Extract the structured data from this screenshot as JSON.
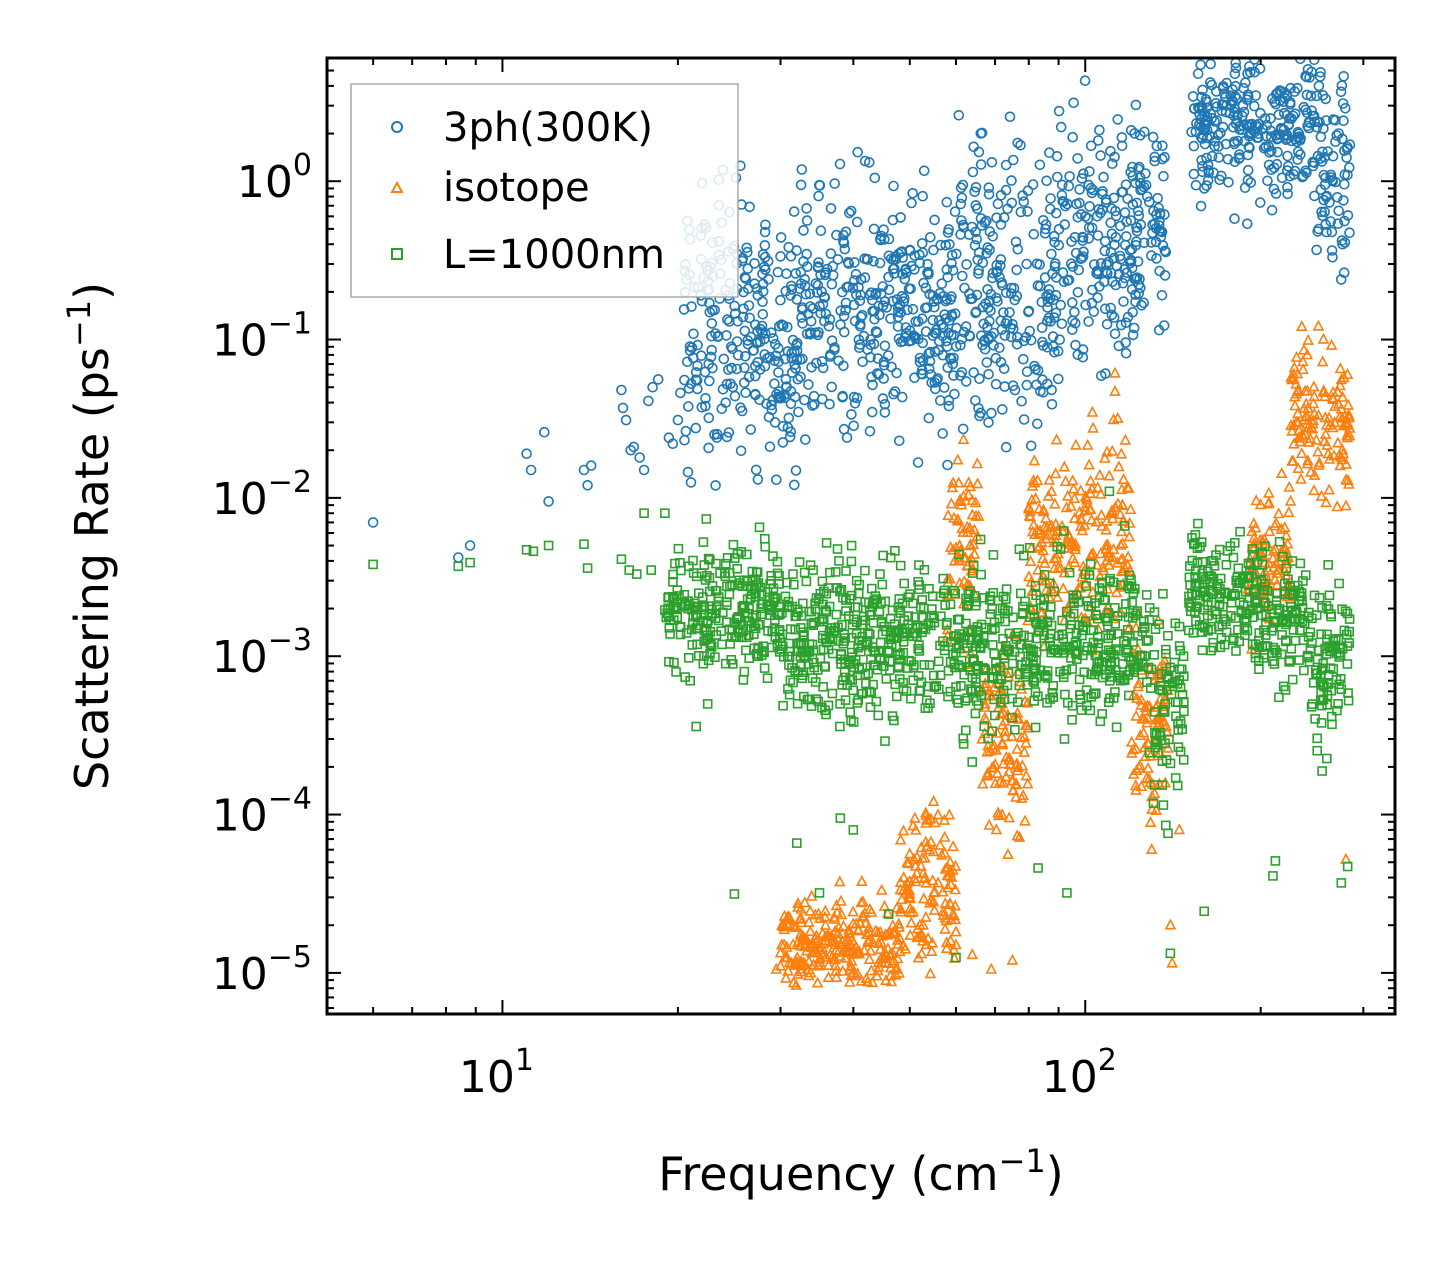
{
  "chart_data": {
    "type": "scatter",
    "title": "",
    "xlabel": "Frequency (cm",
    "xlabel_sup": "−1",
    "xlabel_end": ")",
    "ylabel": "Scattering Rate (ps",
    "ylabel_sup": "−1",
    "ylabel_end": ")",
    "xscale": "log",
    "yscale": "log",
    "xlim": [
      5,
      340
    ],
    "ylim": [
      5.5e-06,
      6
    ],
    "legend_position": "top-left",
    "x_ticks": [
      {
        "value": 10,
        "base": "10",
        "exp": "1"
      },
      {
        "value": 100,
        "base": "10",
        "exp": "2"
      }
    ],
    "y_ticks": [
      {
        "value": 1,
        "base": "10",
        "exp": "0"
      },
      {
        "value": 0.1,
        "base": "10",
        "exp": "−1"
      },
      {
        "value": 0.01,
        "base": "10",
        "exp": "−2"
      },
      {
        "value": 0.001,
        "base": "10",
        "exp": "−3"
      },
      {
        "value": 0.0001,
        "base": "10",
        "exp": "−4"
      },
      {
        "value": 1e-05,
        "base": "10",
        "exp": "−5"
      }
    ],
    "series": [
      {
        "name": "3ph(300K)",
        "marker": "circle",
        "color": "#1f77b4",
        "points": [
          [
            6.0,
            0.007
          ],
          [
            8.4,
            0.0042
          ],
          [
            8.8,
            0.005
          ],
          [
            11.0,
            0.019
          ],
          [
            11.2,
            0.015
          ],
          [
            11.8,
            0.026
          ],
          [
            12.0,
            0.0095
          ],
          [
            13.8,
            0.015
          ],
          [
            14.0,
            0.012
          ],
          [
            14.2,
            0.016
          ],
          [
            16.0,
            0.048
          ],
          [
            16.1,
            0.037
          ],
          [
            16.3,
            0.031
          ],
          [
            16.6,
            0.02
          ],
          [
            16.8,
            0.021
          ],
          [
            17.2,
            0.018
          ],
          [
            17.5,
            0.015
          ],
          [
            17.8,
            0.041
          ],
          [
            18.1,
            0.05
          ],
          [
            18.5,
            0.056
          ],
          [
            19.3,
            0.024
          ],
          [
            19.6,
            0.022
          ],
          [
            20.0,
            0.031
          ],
          [
            20.2,
            0.046
          ],
          [
            20.5,
            0.155
          ],
          [
            21.0,
            0.085
          ],
          [
            21.5,
            0.062
          ],
          [
            22.0,
            0.175
          ],
          [
            22.3,
            0.038
          ],
          [
            22.6,
            0.032
          ],
          [
            24.5,
            0.13
          ],
          [
            26.5,
            0.058
          ],
          [
            29.0,
            0.036
          ],
          [
            30.5,
            0.045
          ],
          [
            31.0,
            0.032
          ],
          [
            33.5,
            0.052
          ],
          [
            36.5,
            0.078
          ],
          [
            43.0,
            0.058
          ]
        ],
        "clusters": [
          [
            20.5,
            33,
            0.12,
            0.8
          ],
          [
            33,
            60,
            0.15,
            0.7
          ],
          [
            60,
            90,
            0.22,
            0.8
          ],
          [
            90,
            122,
            0.45,
            0.8
          ],
          [
            122,
            138,
            0.55,
            0.6
          ],
          [
            152,
            180,
            2.2,
            0.35
          ],
          [
            180,
            215,
            2.2,
            0.45
          ],
          [
            215,
            245,
            2.4,
            0.35
          ],
          [
            245,
            285,
            1.4,
            0.6
          ]
        ]
      },
      {
        "name": "isotope",
        "marker": "triangle",
        "color": "#ff7f0e",
        "points": [
          [
            29.5,
            1.05e-05
          ],
          [
            30.0,
            1.1e-05
          ],
          [
            32.5,
            1.05e-05
          ],
          [
            60.0,
            1.5e-05
          ],
          [
            64.0,
            1.3e-05
          ],
          [
            69.0,
            1.05e-05
          ],
          [
            75.0,
            1.2e-05
          ],
          [
            130.0,
            6e-05
          ],
          [
            140.0,
            2e-05
          ],
          [
            141.0,
            1.15e-05
          ],
          [
            145.0,
            8e-05
          ],
          [
            280.0,
            5.2e-05
          ]
        ],
        "clusters": [
          [
            30,
            48,
            1.4e-05,
            0.28
          ],
          [
            48,
            60,
            3.5e-05,
            0.5
          ],
          [
            58,
            66,
            0.005,
            0.55
          ],
          [
            66,
            80,
            0.0003,
            0.6
          ],
          [
            80,
            95,
            0.005,
            0.45
          ],
          [
            95,
            120,
            0.006,
            0.65
          ],
          [
            120,
            140,
            0.0004,
            0.55
          ],
          [
            190,
            225,
            0.004,
            0.45
          ],
          [
            225,
            285,
            0.03,
            0.45
          ]
        ]
      },
      {
        "name": "L=1000nm",
        "marker": "square",
        "color": "#2ca02c",
        "points": [
          [
            6.0,
            0.0038
          ],
          [
            8.4,
            0.0037
          ],
          [
            8.8,
            0.0039
          ],
          [
            11.0,
            0.0047
          ],
          [
            11.3,
            0.0046
          ],
          [
            12.0,
            0.005
          ],
          [
            13.8,
            0.0051
          ],
          [
            14.0,
            0.0036
          ],
          [
            16.0,
            0.0041
          ],
          [
            16.5,
            0.0035
          ],
          [
            17.0,
            0.0033
          ],
          [
            17.5,
            0.008
          ],
          [
            18.0,
            0.0035
          ],
          [
            19.0,
            0.008
          ],
          [
            21.0,
            0.0007
          ],
          [
            21.5,
            0.00036
          ],
          [
            22.5,
            0.0005
          ],
          [
            25.0,
            3.15e-05
          ],
          [
            26.0,
            0.0008
          ],
          [
            32.0,
            6.6e-05
          ],
          [
            35.0,
            3.2e-05
          ],
          [
            38.0,
            9.5e-05
          ],
          [
            40.0,
            8e-05
          ],
          [
            46.0,
            2.35e-05
          ],
          [
            60.0,
            1.25e-05
          ],
          [
            83.0,
            4.6e-05
          ],
          [
            93.0,
            3.2e-05
          ],
          [
            110.0,
            0.011
          ],
          [
            140.0,
            1.33e-05
          ],
          [
            160.0,
            2.45e-05
          ],
          [
            210.0,
            4.1e-05
          ],
          [
            212.0,
            5.1e-05
          ],
          [
            275.0,
            3.7e-05
          ],
          [
            282.0,
            4.7e-05
          ]
        ],
        "clusters": [
          [
            19,
            30,
            0.002,
            0.35
          ],
          [
            30,
            60,
            0.0013,
            0.45
          ],
          [
            60,
            90,
            0.0012,
            0.5
          ],
          [
            90,
            128,
            0.0012,
            0.45
          ],
          [
            128,
            148,
            0.0005,
            0.6
          ],
          [
            150,
            195,
            0.0025,
            0.35
          ],
          [
            195,
            240,
            0.0017,
            0.4
          ],
          [
            240,
            285,
            0.0009,
            0.5
          ]
        ]
      }
    ]
  }
}
